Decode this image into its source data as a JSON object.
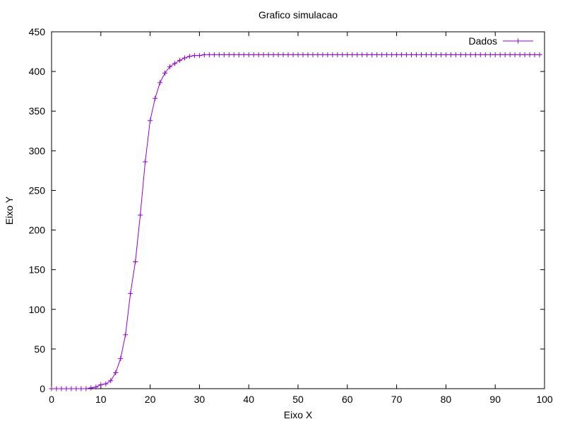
{
  "chart_data": {
    "type": "line",
    "title": "Grafico simulacao",
    "xlabel": "Eixo X",
    "ylabel": "Eixo Y",
    "xlim": [
      0,
      100
    ],
    "ylim": [
      0,
      450
    ],
    "xticks": [
      "0",
      "10",
      "20",
      "30",
      "40",
      "50",
      "60",
      "70",
      "80",
      "90",
      "100"
    ],
    "yticks": [
      "0",
      "50",
      "100",
      "150",
      "200",
      "250",
      "300",
      "350",
      "400",
      "450"
    ],
    "grid": false,
    "legend_position": "top-right",
    "series": [
      {
        "name": "Dados",
        "color": "#9400d3",
        "marker": "plus",
        "x": [
          0,
          1,
          2,
          3,
          4,
          5,
          6,
          7,
          8,
          9,
          10,
          11,
          12,
          13,
          14,
          15,
          16,
          17,
          18,
          19,
          20,
          21,
          22,
          23,
          24,
          25,
          26,
          27,
          28,
          29,
          30,
          31,
          32,
          33,
          34,
          35,
          36,
          37,
          38,
          39,
          40,
          41,
          42,
          43,
          44,
          45,
          46,
          47,
          48,
          49,
          50,
          51,
          52,
          53,
          54,
          55,
          56,
          57,
          58,
          59,
          60,
          61,
          62,
          63,
          64,
          65,
          66,
          67,
          68,
          69,
          70,
          71,
          72,
          73,
          74,
          75,
          76,
          77,
          78,
          79,
          80,
          81,
          82,
          83,
          84,
          85,
          86,
          87,
          88,
          89,
          90,
          91,
          92,
          93,
          94,
          95,
          96,
          97,
          98,
          99
        ],
        "y": [
          0,
          0,
          0,
          0,
          0,
          0,
          0,
          0,
          1,
          2,
          5,
          6,
          10,
          20,
          38,
          68,
          120,
          160,
          219,
          286,
          338,
          366,
          386,
          398,
          406,
          410,
          414,
          417,
          419,
          420,
          420,
          421,
          421,
          421,
          421,
          421,
          421,
          421,
          421,
          421,
          421,
          421,
          421,
          421,
          421,
          421,
          421,
          421,
          421,
          421,
          421,
          421,
          421,
          421,
          421,
          421,
          421,
          421,
          421,
          421,
          421,
          421,
          421,
          421,
          421,
          421,
          421,
          421,
          421,
          421,
          421,
          421,
          421,
          421,
          421,
          421,
          421,
          421,
          421,
          421,
          421,
          421,
          421,
          421,
          421,
          421,
          421,
          421,
          421,
          421,
          421,
          421,
          421,
          421,
          421,
          421,
          421,
          421,
          421,
          421
        ]
      }
    ]
  }
}
